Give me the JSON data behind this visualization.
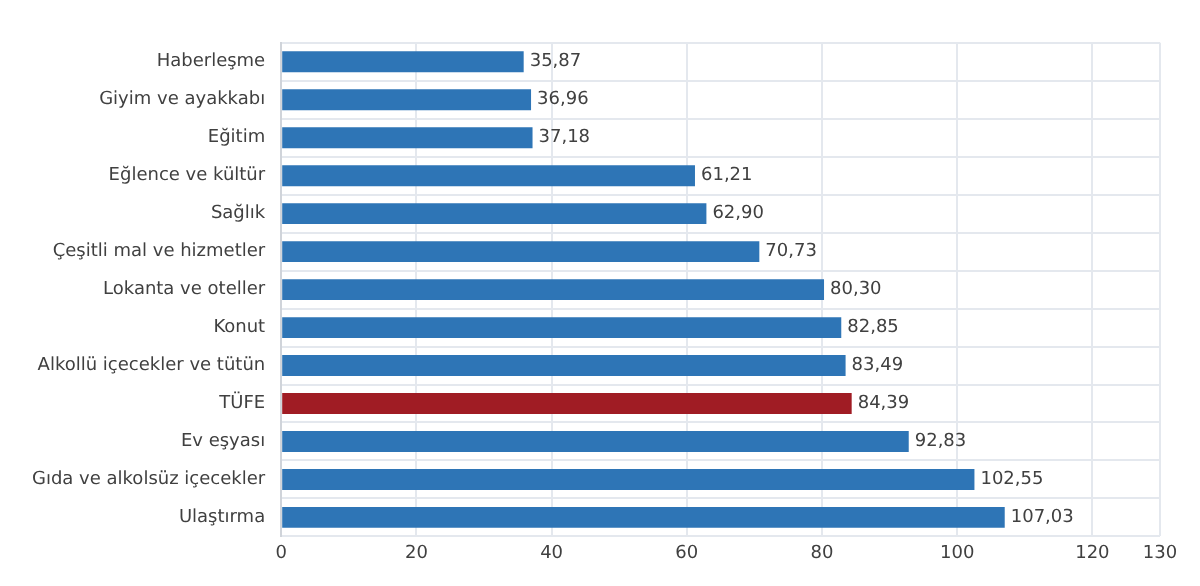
{
  "chart_data": {
    "type": "bar",
    "orientation": "horizontal",
    "categories": [
      "Haberleşme",
      "Giyim ve ayakkabı",
      "Eğitim",
      "Eğlence ve kültür",
      "Sağlık",
      "Çeşitli mal ve hizmetler",
      "Lokanta ve oteller",
      "Konut",
      "Alkollü içecekler ve tütün",
      "TÜFE",
      "Ev eşyası",
      "Gıda ve alkolsüz içecekler",
      "Ulaştırma"
    ],
    "values": [
      35.87,
      36.96,
      37.18,
      61.21,
      62.9,
      70.73,
      80.3,
      82.85,
      83.49,
      84.39,
      92.83,
      102.55,
      107.03
    ],
    "colors": [
      "#2e75b6",
      "#2e75b6",
      "#2e75b6",
      "#2e75b6",
      "#2e75b6",
      "#2e75b6",
      "#2e75b6",
      "#2e75b6",
      "#2e75b6",
      "#a01c24",
      "#2e75b6",
      "#2e75b6",
      "#2e75b6"
    ],
    "value_labels": [
      "35,87",
      "36,96",
      "37,18",
      "61,21",
      "62,90",
      "70,73",
      "80,30",
      "82,85",
      "83,49",
      "84,39",
      "92,83",
      "102,55",
      "107,03"
    ],
    "xlim": [
      0,
      130
    ],
    "xticks": [
      0,
      20,
      40,
      60,
      80,
      100,
      120,
      130
    ],
    "grid": true,
    "legend": false
  }
}
